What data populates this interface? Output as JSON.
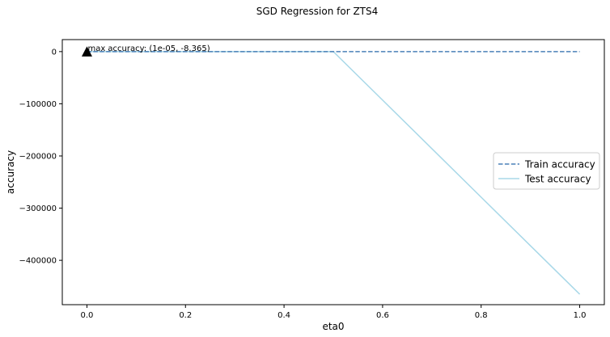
{
  "chart_data": {
    "type": "line",
    "title": "SGD Regression for ZTS4",
    "xlabel": "eta0",
    "ylabel": "accuracy",
    "xlim": [
      -0.05,
      1.05
    ],
    "ylim": [
      -485000,
      23000
    ],
    "x_ticks": [
      0,
      0.2,
      0.4,
      0.6,
      0.8,
      1.0
    ],
    "x_tick_labels": [
      "0.0",
      "0.2",
      "0.4",
      "0.6",
      "0.8",
      "1.0"
    ],
    "y_ticks": [
      0,
      -100000,
      -200000,
      -300000,
      -400000
    ],
    "y_tick_labels": [
      "0",
      "−100000",
      "−200000",
      "−300000",
      "−400000"
    ],
    "grid": false,
    "legend_position": "right",
    "series": [
      {
        "name": "Train accuracy",
        "style": "dashed",
        "color": "#4a80b8",
        "x": [
          1e-05,
          0.1,
          0.2,
          0.3,
          0.4,
          0.5,
          0.6,
          0.7,
          0.8,
          0.9,
          1.0
        ],
        "y": [
          -8.365,
          -10,
          -10,
          -10,
          -10,
          -10,
          -10,
          -10,
          -10,
          -10,
          -10
        ]
      },
      {
        "name": "Test accuracy",
        "style": "solid",
        "color": "#a8d8e8",
        "x": [
          1e-05,
          0.1,
          0.2,
          0.3,
          0.4,
          0.5,
          0.6,
          0.7,
          0.8,
          0.9,
          1.0
        ],
        "y": [
          -8.365,
          -10,
          -10,
          -10,
          -10,
          -10,
          -93000,
          -186000,
          -279000,
          -372000,
          -465000
        ]
      }
    ],
    "annotations": [
      {
        "text": "max accuracy: (1e-05, -8.365)",
        "x": 1e-05,
        "y": -8.365,
        "marker": "triangle-up",
        "marker_color": "#000000"
      }
    ]
  }
}
